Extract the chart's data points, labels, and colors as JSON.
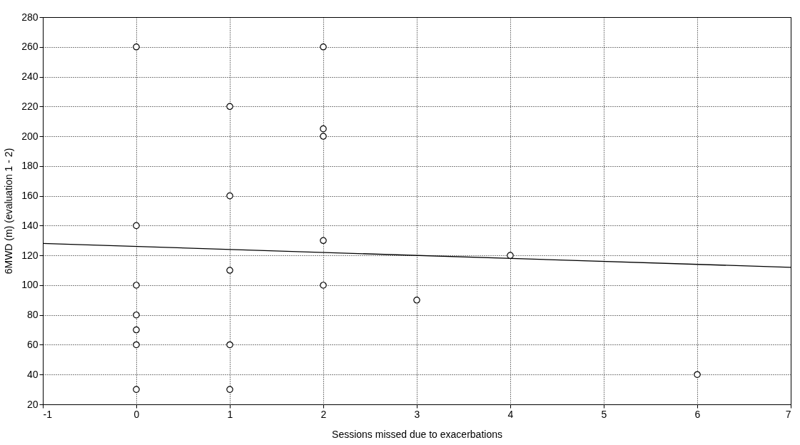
{
  "chart_data": {
    "type": "scatter",
    "xlabel": "Sessions missed due to exacerbations",
    "ylabel": "6MWD (m) (evaluation 1 - 2)",
    "xlim": [
      -1,
      7
    ],
    "xticks": [
      -1,
      0,
      1,
      2,
      3,
      4,
      5,
      6,
      7
    ],
    "ylim": [
      20,
      280
    ],
    "yticks": [
      20,
      40,
      60,
      80,
      100,
      120,
      140,
      160,
      180,
      200,
      220,
      240,
      260,
      280
    ],
    "grid": true,
    "series": [
      {
        "type": "scatter",
        "marker": "circle",
        "color": "#000000",
        "x": [
          0,
          0,
          0,
          0,
          0,
          0,
          0,
          1,
          1,
          1,
          1,
          1,
          2,
          2,
          2,
          2,
          2,
          3,
          4,
          6
        ],
        "values": [
          260,
          140,
          100,
          80,
          70,
          60,
          30,
          220,
          160,
          110,
          60,
          30,
          260,
          205,
          200,
          130,
          100,
          90,
          120,
          40
        ]
      },
      {
        "type": "line",
        "color": "#000000",
        "line_style": "solid",
        "marker": "none",
        "x": [
          -1,
          7
        ],
        "values": [
          128,
          112
        ]
      }
    ]
  }
}
